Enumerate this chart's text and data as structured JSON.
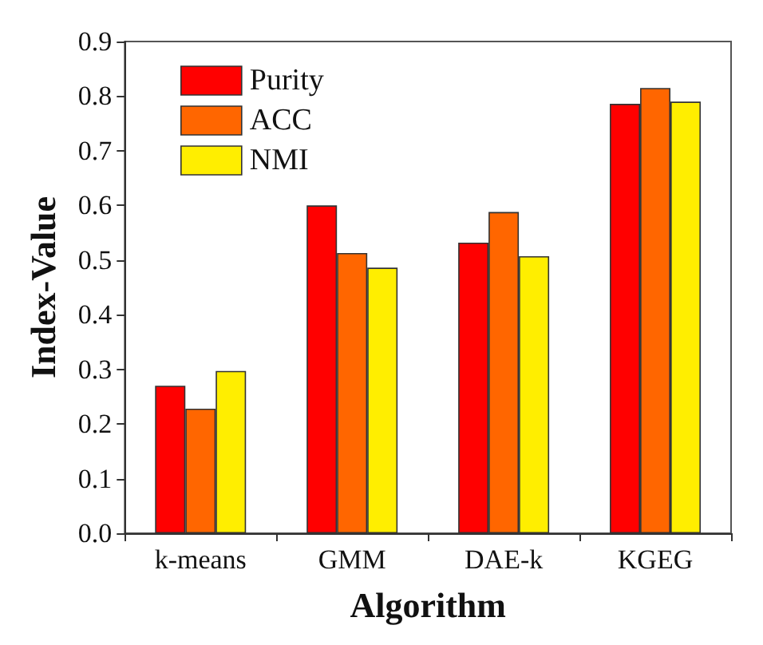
{
  "chart_data": {
    "type": "bar",
    "xlabel": "Algorithm",
    "ylabel": "Index-Value",
    "categories": [
      "k-means",
      "GMM",
      "DAE-k",
      "KGEG"
    ],
    "series": [
      {
        "name": "Purity",
        "color": "#ff0000",
        "values": [
          0.27,
          0.6,
          0.532,
          0.786
        ]
      },
      {
        "name": "ACC",
        "color": "#ff6600",
        "values": [
          0.228,
          0.513,
          0.588,
          0.815
        ]
      },
      {
        "name": "NMI",
        "color": "#ffee00",
        "values": [
          0.297,
          0.486,
          0.507,
          0.79
        ]
      }
    ],
    "ylim": [
      0,
      0.9
    ],
    "yticks": [
      {
        "value": 0,
        "label": "0.0"
      },
      0.1,
      0.2,
      0.3,
      0.4,
      0.5,
      0.6,
      0.7,
      0.8,
      0.9
    ],
    "grid": false,
    "legend": "top left"
  }
}
